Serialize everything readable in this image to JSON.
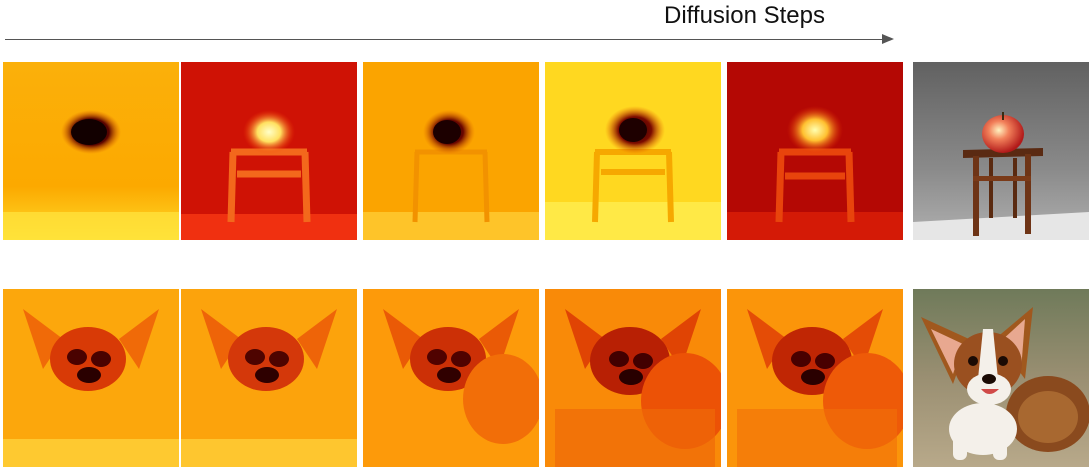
{
  "figure": {
    "axis_label": "Diffusion Steps"
  },
  "rows": [
    {
      "subject": "apple-on-stool",
      "heatmaps": [
        {
          "style": "dark-apple",
          "background": "#f9a300"
        },
        {
          "style": "bright-apple",
          "background": "#d21406"
        },
        {
          "style": "dark-apple",
          "background": "#fba200"
        },
        {
          "style": "dark-apple",
          "background": "#ffd81a"
        },
        {
          "style": "bright-apple",
          "background": "#b90804"
        }
      ],
      "photo": "apple-on-wooden-stool"
    },
    {
      "subject": "corgi-puppy",
      "heatmaps": [
        {
          "style": "corgi",
          "background": "#fca70c"
        },
        {
          "style": "corgi",
          "background": "#fca30c"
        },
        {
          "style": "corgi",
          "background": "#fd9a0a"
        },
        {
          "style": "corgi",
          "background": "#f98a08"
        },
        {
          "style": "corgi",
          "background": "#fb950a"
        }
      ],
      "photo": "corgi-puppy-lying-on-sand"
    }
  ]
}
